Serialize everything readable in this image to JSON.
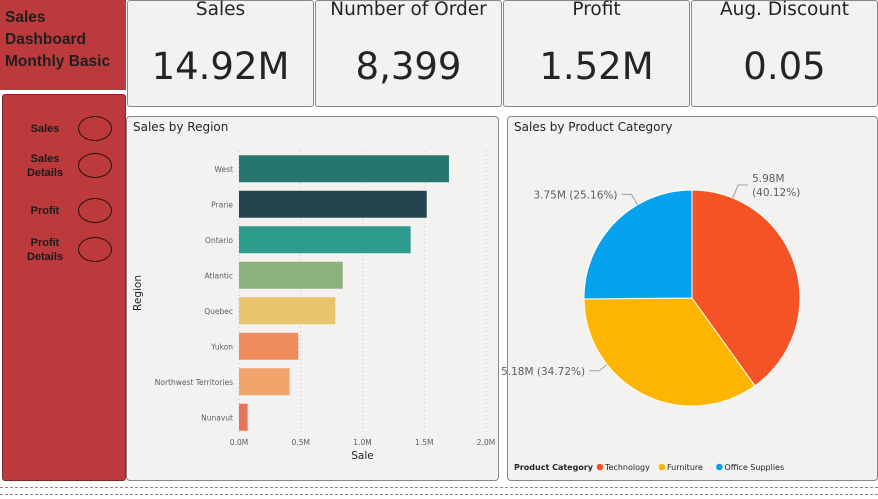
{
  "header": {
    "title_lines": [
      "Sales",
      "Dashboard",
      "Monthly Basic"
    ]
  },
  "nav": {
    "items": [
      {
        "lines": [
          "Sales"
        ],
        "name": "sales"
      },
      {
        "lines": [
          "Sales",
          "Details"
        ],
        "name": "sales-details"
      },
      {
        "lines": [
          "Profit"
        ],
        "name": "profit"
      },
      {
        "lines": [
          "Profit",
          "Details"
        ],
        "name": "profit-details"
      }
    ]
  },
  "kpis": [
    {
      "label": "Sales",
      "value": "14.92M"
    },
    {
      "label": "Number of Order",
      "value": "8,399"
    },
    {
      "label": "Profit",
      "value": "1.52M"
    },
    {
      "label": "Aug. Discount",
      "value": "0.05"
    }
  ],
  "colors": {
    "brand_red": "#bc3a3c",
    "panel_bg": "#f3f2f1"
  },
  "chart_data": [
    {
      "type": "bar",
      "orientation": "horizontal",
      "title": "Sales by Region",
      "xlabel": "Sale",
      "ylabel": "Region",
      "categories": [
        "West",
        "Prarie",
        "Ontario",
        "Atlantic",
        "Quebec",
        "Yukon",
        "Northwest Territories",
        "Nunavut"
      ],
      "values": [
        1.7,
        1.52,
        1.39,
        0.84,
        0.78,
        0.48,
        0.41,
        0.07
      ],
      "colors": [
        "#277570",
        "#24444f",
        "#2e9c8c",
        "#8db27c",
        "#e8c56a",
        "#ee8c5c",
        "#f2a56a",
        "#e8735a"
      ],
      "xlim": [
        0,
        2.0
      ],
      "xticks": [
        0,
        0.5,
        1.0,
        1.5,
        2.0
      ],
      "xtick_labels": [
        "0.0M",
        "0.5M",
        "1.0M",
        "1.5M",
        "2.0M"
      ],
      "grid": true
    },
    {
      "type": "pie",
      "title": "Sales by Product Category",
      "legend_title": "Product Category",
      "legend_position": "bottom-left",
      "slices": [
        {
          "name": "Technology",
          "value": 5.98,
          "percent": 40.12,
          "label": "5.98M",
          "pct_label": "(40.12%)",
          "color": "#f45425"
        },
        {
          "name": "Furniture",
          "value": 5.18,
          "percent": 34.72,
          "label": "5.18M (34.72%)",
          "color": "#feb500"
        },
        {
          "name": "Office Supplies",
          "value": 3.75,
          "percent": 25.16,
          "label": "3.75M (25.16%)",
          "color": "#06a2ee"
        }
      ]
    }
  ]
}
